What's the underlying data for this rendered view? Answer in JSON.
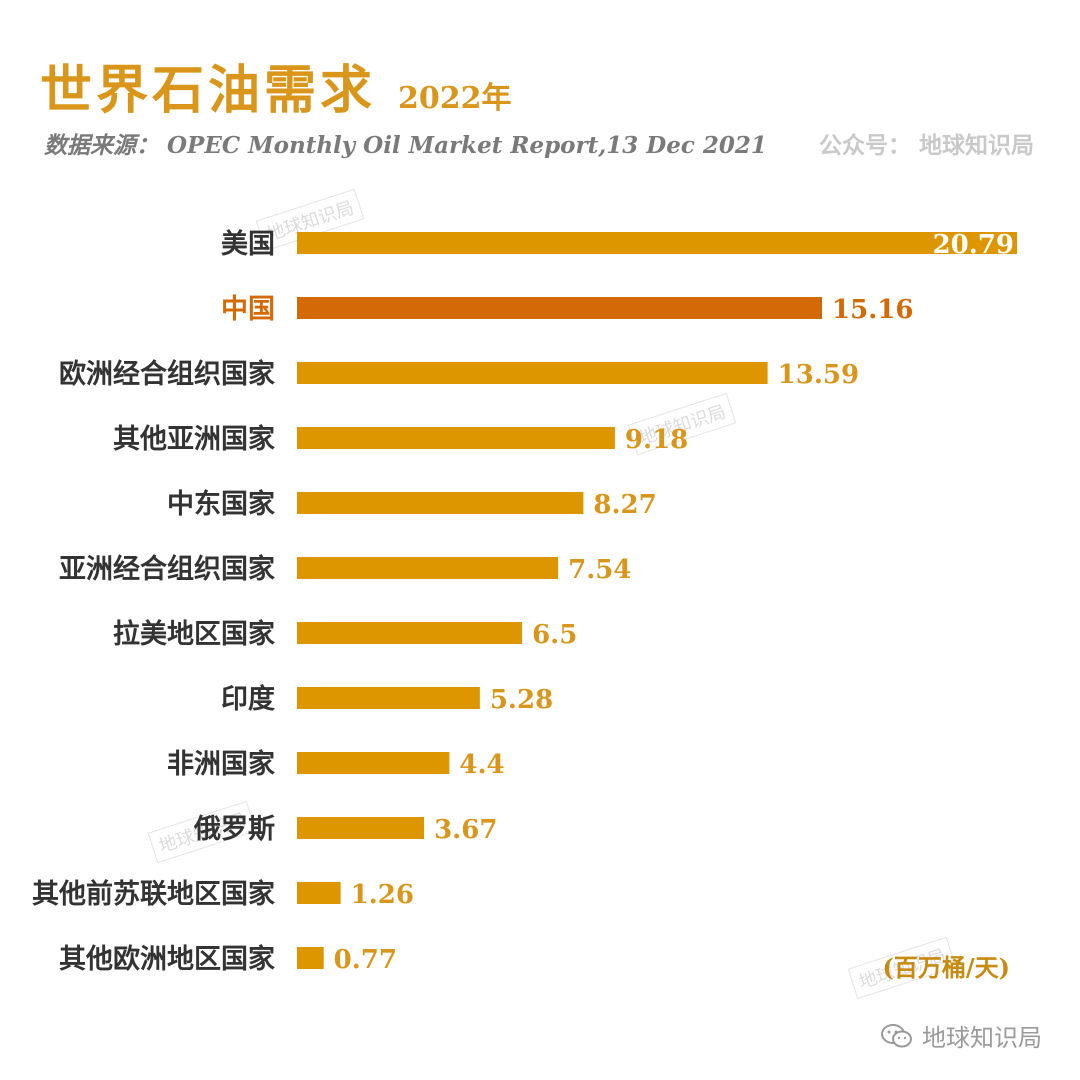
{
  "header": {
    "title": "世界石油需求",
    "year": "2022年",
    "source": "数据来源： OPEC Monthly Oil Market Report,13 Dec 2021",
    "account": "公众号：  地球知识局"
  },
  "watermark_text": "地球知识局",
  "footer": {
    "icon": "wechat-icon",
    "label": "地球知识局"
  },
  "colors": {
    "bar": "#dd9600",
    "highlight": "#d46a06",
    "highlight_label": "#d46a06",
    "label": "#d9961a",
    "category": "#333333"
  },
  "chart_data": {
    "type": "bar",
    "orientation": "horizontal",
    "title": "世界石油需求",
    "subtitle": "2022年",
    "unit": "(百万桶/天)",
    "xlim": [
      0,
      20.79
    ],
    "grid": false,
    "highlight": "中国",
    "categories": [
      "美国",
      "中国",
      "欧洲经合组织国家",
      "其他亚洲国家",
      "中东国家",
      "亚洲经合组织国家",
      "拉美地区国家",
      "印度",
      "非洲国家",
      "俄罗斯",
      "其他前苏联地区国家",
      "其他欧洲地区国家"
    ],
    "values": [
      20.79,
      15.16,
      13.59,
      9.18,
      8.27,
      7.54,
      6.5,
      5.28,
      4.4,
      3.67,
      1.26,
      0.77
    ],
    "value_labels": [
      "20.79",
      "15.16",
      "13.59",
      "9.18",
      "8.27",
      "7.54",
      "6.5",
      "5.28",
      "4.4",
      "3.67",
      "1.26",
      "0.77"
    ]
  }
}
